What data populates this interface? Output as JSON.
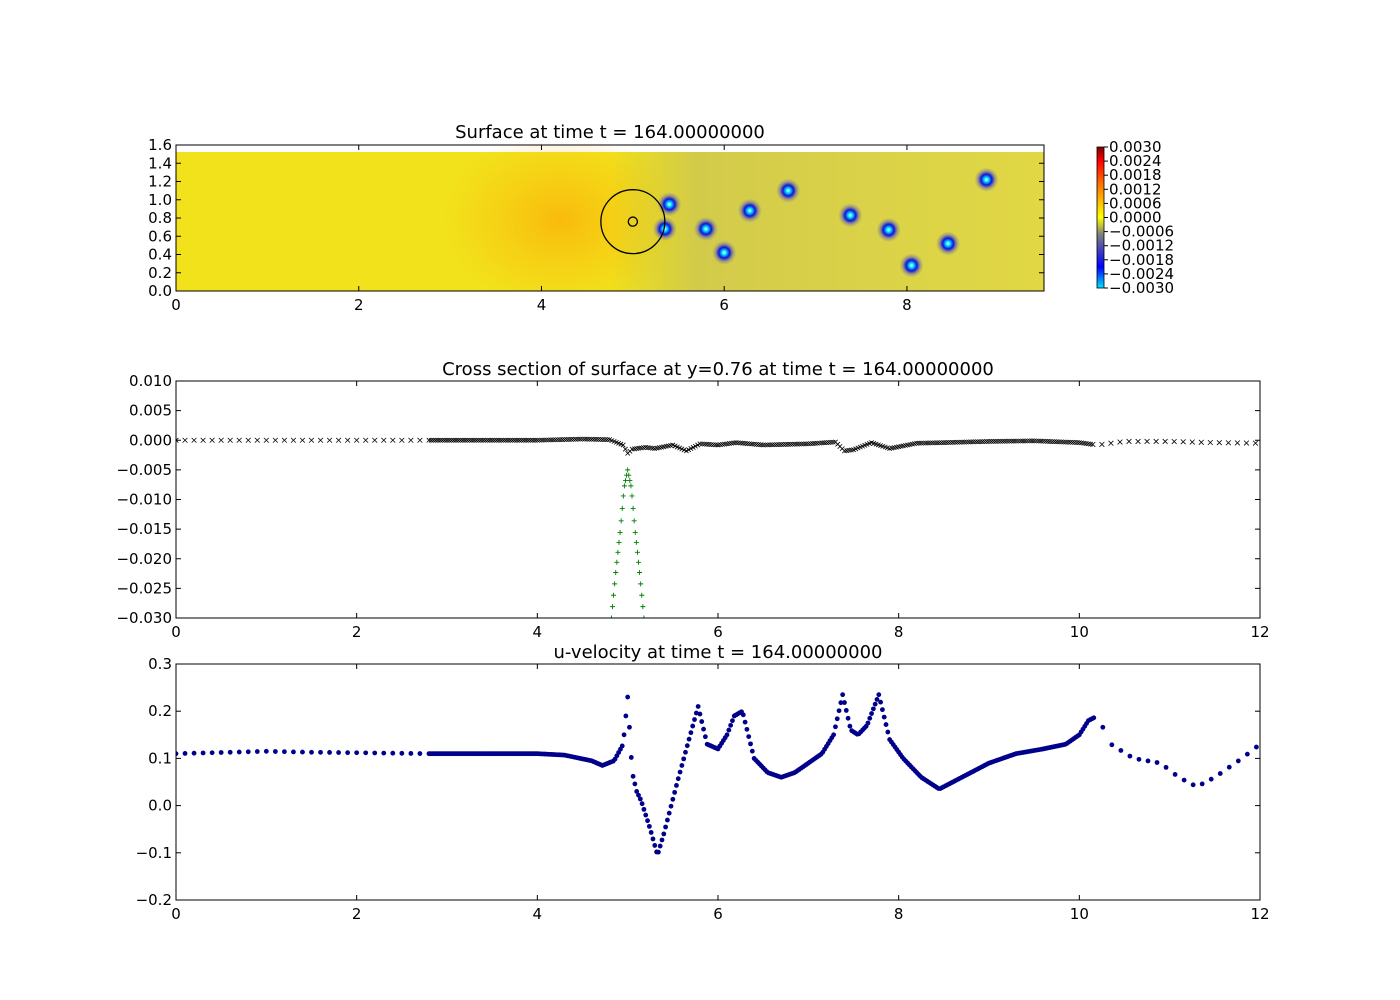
{
  "chart_data": [
    {
      "type": "heatmap",
      "title": "Surface at time t =   164.00000000",
      "xlim": [
        0,
        9.5
      ],
      "ylim": [
        0,
        1.6
      ],
      "x_ticks": [
        "0",
        "2",
        "4",
        "6",
        "8"
      ],
      "y_ticks": [
        "0.0",
        "0.2",
        "0.4",
        "0.6",
        "0.8",
        "1.0",
        "1.2",
        "1.4",
        "1.6"
      ],
      "colorbar": {
        "range": [
          -0.003,
          0.003
        ],
        "ticks": [
          "0.0030",
          "0.0024",
          "0.0018",
          "0.0012",
          "0.0006",
          "0.0000",
          "−0.0006",
          "−0.0012",
          "−0.0018",
          "−0.0024",
          "−0.0030"
        ],
        "colors": [
          "#00e5ff",
          "#0000ff",
          "#808080",
          "#ffff00",
          "#ff0000",
          "#800000"
        ]
      },
      "background_color": "#f0e020",
      "depressions": [
        {
          "x": 5.35,
          "y": 0.68
        },
        {
          "x": 5.4,
          "y": 0.95
        },
        {
          "x": 5.8,
          "y": 0.68
        },
        {
          "x": 6.0,
          "y": 0.42
        },
        {
          "x": 6.28,
          "y": 0.88
        },
        {
          "x": 6.7,
          "y": 1.1
        },
        {
          "x": 7.38,
          "y": 0.83
        },
        {
          "x": 7.8,
          "y": 0.67
        },
        {
          "x": 8.05,
          "y": 0.28
        },
        {
          "x": 8.45,
          "y": 0.52
        },
        {
          "x": 8.87,
          "y": 1.22
        }
      ],
      "circle": {
        "cx": 5.0,
        "cy": 0.76,
        "r": 0.35
      },
      "small_circle": {
        "cx": 5.0,
        "cy": 0.76,
        "r": 0.05
      }
    },
    {
      "type": "scatter",
      "title": "Cross section of surface at y=0.76 at time t =   164.00000000",
      "xlim": [
        0,
        12
      ],
      "ylim": [
        -0.03,
        0.01
      ],
      "x_ticks": [
        "0",
        "2",
        "4",
        "6",
        "8",
        "10",
        "12"
      ],
      "y_ticks": [
        "0.010",
        "0.005",
        "0.000",
        "−0.005",
        "−0.010",
        "−0.015",
        "−0.020",
        "−0.025",
        "−0.030"
      ],
      "series": [
        {
          "marker": "x",
          "color": "#000000",
          "x": [
            0,
            0.5,
            1,
            1.5,
            2,
            2.5,
            2.8,
            3.5,
            4.0,
            4.5,
            4.8,
            4.95,
            5.0,
            5.05,
            5.2,
            5.3,
            5.5,
            5.65,
            5.8,
            6.0,
            6.2,
            6.5,
            7.0,
            7.3,
            7.4,
            7.5,
            7.7,
            7.9,
            8.2,
            8.5,
            9.0,
            9.5,
            10.0,
            10.2,
            10.5,
            11.0,
            11.5,
            12.0
          ],
          "y": [
            0.0,
            0.0,
            0.0,
            0.0,
            0.0,
            0.0,
            0.0,
            0.0,
            0.0,
            0.0002,
            0.0001,
            -0.0008,
            -0.0022,
            -0.0015,
            -0.0012,
            -0.0014,
            -0.0008,
            -0.0018,
            -0.0006,
            -0.0008,
            -0.0004,
            -0.0008,
            -0.0006,
            -0.0003,
            -0.0018,
            -0.0016,
            -0.0004,
            -0.0014,
            -0.0005,
            -0.0004,
            -0.0002,
            -0.0001,
            -0.0004,
            -0.0008,
            -0.0002,
            -0.0002,
            -0.0004,
            -0.0005
          ]
        },
        {
          "marker": "+",
          "color": "#008000",
          "x": [
            4.82,
            4.87,
            4.92,
            4.96,
            5.0,
            5.04,
            5.08,
            5.13,
            5.18
          ],
          "y": [
            -0.03,
            -0.022,
            -0.015,
            -0.008,
            -0.005,
            -0.008,
            -0.015,
            -0.022,
            -0.03
          ]
        }
      ]
    },
    {
      "type": "scatter",
      "title": "u-velocity at time t =   164.00000000",
      "xlim": [
        0,
        12
      ],
      "ylim": [
        -0.2,
        0.3
      ],
      "x_ticks": [
        "0",
        "2",
        "4",
        "6",
        "8",
        "10",
        "12"
      ],
      "y_ticks": [
        "0.3",
        "0.2",
        "0.1",
        "0.0",
        "−0.1",
        "−0.2"
      ],
      "series": [
        {
          "marker": "o",
          "color": "#00008b",
          "x": [
            0,
            1,
            1.5,
            2,
            2.8,
            3.5,
            4.0,
            4.3,
            4.6,
            4.72,
            4.85,
            4.95,
            5.0,
            5.05,
            5.1,
            5.15,
            5.25,
            5.33,
            5.4,
            5.55,
            5.65,
            5.78,
            5.88,
            6.0,
            6.1,
            6.18,
            6.27,
            6.4,
            6.55,
            6.7,
            6.85,
            7.0,
            7.15,
            7.28,
            7.38,
            7.47,
            7.55,
            7.65,
            7.78,
            7.9,
            8.05,
            8.25,
            8.45,
            8.6,
            8.8,
            9.0,
            9.3,
            9.6,
            9.85,
            10.0,
            10.1,
            10.2,
            10.35,
            10.6,
            10.9,
            11.1,
            11.3,
            11.5,
            11.8,
            12.0
          ],
          "y": [
            0.11,
            0.115,
            0.113,
            0.112,
            0.11,
            0.11,
            0.11,
            0.107,
            0.095,
            0.085,
            0.095,
            0.13,
            0.23,
            0.07,
            0.03,
            0.01,
            -0.05,
            -0.105,
            -0.06,
            0.05,
            0.12,
            0.21,
            0.13,
            0.12,
            0.15,
            0.19,
            0.2,
            0.1,
            0.07,
            0.06,
            0.07,
            0.09,
            0.11,
            0.15,
            0.235,
            0.16,
            0.15,
            0.17,
            0.235,
            0.14,
            0.1,
            0.06,
            0.035,
            0.05,
            0.07,
            0.09,
            0.11,
            0.12,
            0.13,
            0.15,
            0.18,
            0.19,
            0.13,
            0.1,
            0.09,
            0.06,
            0.04,
            0.06,
            0.1,
            0.13
          ]
        }
      ]
    }
  ]
}
